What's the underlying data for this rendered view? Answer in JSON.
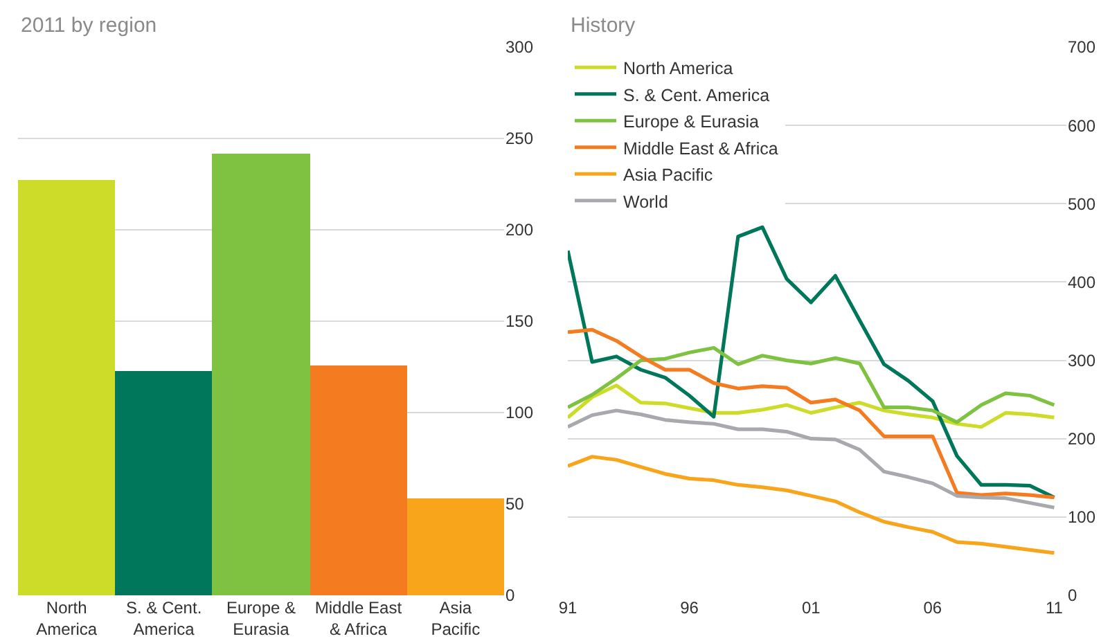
{
  "chart_data": [
    {
      "type": "bar",
      "title": "2011 by region",
      "categories": [
        "North America",
        "S. & Cent. America",
        "Europe & Eurasia",
        "Middle East & Africa",
        "Asia Pacific"
      ],
      "values": [
        227,
        123,
        242,
        126,
        53
      ],
      "colors": [
        "#cddc29",
        "#00775a",
        "#7fc242",
        "#f47b20",
        "#f8a51b"
      ],
      "ylim": [
        0,
        300
      ],
      "yticks": [
        0,
        50,
        100,
        150,
        200,
        250,
        300
      ],
      "grid": "y"
    },
    {
      "type": "line",
      "title": "History",
      "x": [
        1991,
        1992,
        1993,
        1994,
        1995,
        1996,
        1997,
        1998,
        1999,
        2000,
        2001,
        2002,
        2003,
        2004,
        2005,
        2006,
        2007,
        2008,
        2009,
        2010,
        2011
      ],
      "series": [
        {
          "name": "North America",
          "color": "#cddc29",
          "values": [
            227,
            253,
            268,
            246,
            245,
            239,
            233,
            233,
            237,
            243,
            233,
            240,
            246,
            236,
            231,
            227,
            219,
            215,
            233,
            231,
            227
          ]
        },
        {
          "name": "S. & Cent. America",
          "color": "#00775a",
          "values": [
            440,
            298,
            305,
            288,
            278,
            255,
            228,
            458,
            470,
            404,
            374,
            408,
            351,
            295,
            274,
            248,
            178,
            141,
            141,
            140,
            125
          ]
        },
        {
          "name": "Europe & Eurasia",
          "color": "#7fc242",
          "values": [
            240,
            256,
            277,
            300,
            302,
            310,
            316,
            295,
            306,
            300,
            296,
            303,
            296,
            240,
            240,
            236,
            221,
            243,
            258,
            255,
            243
          ]
        },
        {
          "name": "Middle East & Africa",
          "color": "#f47b20",
          "values": [
            336,
            339,
            325,
            305,
            288,
            288,
            271,
            264,
            267,
            265,
            246,
            250,
            236,
            203,
            203,
            203,
            131,
            128,
            130,
            128,
            125
          ]
        },
        {
          "name": "Asia Pacific",
          "color": "#f8a51b",
          "values": [
            165,
            177,
            173,
            164,
            155,
            149,
            147,
            141,
            138,
            134,
            127,
            120,
            106,
            94,
            87,
            81,
            68,
            66,
            62,
            58,
            54
          ]
        },
        {
          "name": "World",
          "color": "#a7a9ac",
          "values": [
            215,
            230,
            236,
            231,
            224,
            221,
            219,
            212,
            212,
            209,
            200,
            199,
            186,
            158,
            151,
            143,
            127,
            125,
            124,
            118,
            112
          ]
        }
      ],
      "xlim": [
        1991,
        2011.5
      ],
      "xticks": [
        {
          "value": 1991,
          "label": "91"
        },
        {
          "value": 1996,
          "label": "96"
        },
        {
          "value": 2001,
          "label": "01"
        },
        {
          "value": 2006,
          "label": "06"
        },
        {
          "value": 2011,
          "label": "11"
        }
      ],
      "ylim": [
        0,
        700
      ],
      "yticks": [
        0,
        100,
        200,
        300,
        400,
        500,
        600,
        700
      ],
      "grid": "y",
      "legend": "top left"
    }
  ]
}
